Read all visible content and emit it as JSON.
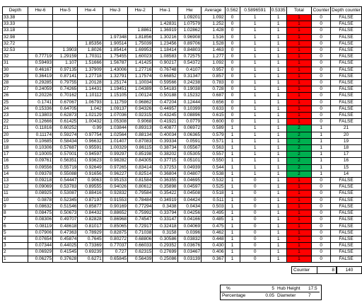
{
  "table": {
    "header": [
      "Depth",
      "Hw-6",
      "Hw-5",
      "Hw-4",
      "Hw-3",
      "Hw-2",
      "Hw-1",
      "Hw",
      "Average",
      "0.562",
      "0.5896591",
      "0.5335",
      "Total",
      "Counter",
      "Depth counter"
    ],
    "total_colors": {
      "1": "#ff0000",
      "2": "#00b050"
    },
    "rows": [
      [
        "33.38",
        null,
        null,
        null,
        null,
        null,
        null,
        "1.09201",
        "1.092",
        "0",
        "1",
        "1",
        "1",
        "0",
        "FALSE"
      ],
      [
        "33.33",
        null,
        null,
        null,
        null,
        null,
        "1.42831",
        "1.07579",
        "1.252",
        "0",
        "1",
        "1",
        "1",
        "0",
        "FALSE"
      ],
      [
        "33.18",
        null,
        null,
        null,
        null,
        "1.8861",
        "1.36919",
        "1.02862",
        "1.428",
        "0",
        "1",
        "1",
        "1",
        "0",
        "FALSE"
      ],
      [
        "32.98",
        null,
        null,
        null,
        "1.97348",
        "1.81856",
        "1.30216",
        "0.96908",
        "1.516",
        "0",
        "1",
        "1",
        "1",
        "0",
        "FALSE"
      ],
      [
        "32.72",
        null,
        null,
        "1.85356",
        "1.90514",
        "1.75039",
        "1.23456",
        "0.89706",
        "1.528",
        "0",
        "1",
        "1",
        "1",
        "0",
        "FALSE"
      ],
      [
        "32.53",
        null,
        "1.3903",
        "1.8026",
        "1.85414",
        "1.69953",
        "1.18414",
        "0.84803",
        "1.463",
        "0",
        "1",
        "1",
        "1",
        "0",
        "FALSE"
      ],
      [
        "32",
        "0.77719",
        "1.29159",
        "1.70311",
        "1.75455",
        "1.60023",
        "1.08583",
        "0.72575",
        "1.277",
        "0",
        "1",
        "1",
        "1",
        "0",
        "FALSE"
      ],
      [
        "31",
        "0.59493",
        "1.107",
        "1.51666",
        "1.56787",
        "1.41425",
        "0.90217",
        "0.54372",
        "1.092",
        "0",
        "1",
        "1",
        "1",
        "0",
        "FALSE"
      ],
      [
        "30",
        "0.46167",
        "0.97135",
        "1.37909",
        "1.43006",
        "1.27716",
        "0.76748",
        "0.4107",
        "0.957",
        "0",
        "1",
        "1",
        "1",
        "0",
        "FALSE"
      ],
      [
        "29",
        "0.36419",
        "0.87141",
        "1.27718",
        "1.32791",
        "1.17574",
        "0.66852",
        "0.31347",
        "0.857",
        "0",
        "1",
        "1",
        "1",
        "0",
        "FALSE"
      ],
      [
        "28",
        "0.29285",
        "0.79755",
        "1.20128",
        "1.25174",
        "1.10034",
        "0.59566",
        "0.24238",
        "0.783",
        "0",
        "1",
        "1",
        "1",
        "0",
        "FALSE"
      ],
      [
        "27",
        "0.24059",
        "0.74265",
        "1.14431",
        "1.19451",
        "1.04389",
        "0.54183",
        "0.19038",
        "0.728",
        "0",
        "1",
        "1",
        "1",
        "0",
        "FALSE"
      ],
      [
        "26",
        "0.20226",
        "0.70162",
        "1.10112",
        "1.15105",
        "1.00124",
        "0.50188",
        "0.15232",
        "0.687",
        "0",
        "1",
        "1",
        "1",
        "0",
        "FALSE"
      ],
      [
        "25",
        "0.1741",
        "0.67067",
        "1.06793",
        "1.11759",
        "0.96862",
        "0.47204",
        "0.12444",
        "0.656",
        "0",
        "1",
        "1",
        "1",
        "0",
        "FALSE"
      ],
      [
        "24",
        "0.15336",
        "0.64705",
        "1.042",
        "1.09137",
        "0.94326",
        "0.44957",
        "0.10399",
        "0.633",
        "0",
        "1",
        "1",
        "1",
        "0",
        "FALSE"
      ],
      [
        "23",
        "0.13803",
        "0.62873",
        "1.02129",
        "1.07036",
        "0.92315",
        "0.43245",
        "0.08896",
        "0.615",
        "0",
        "1",
        "1",
        "1",
        "0",
        "FALSE"
      ],
      [
        "22",
        "0.12666",
        "0.61425",
        "1.00432",
        "1.05308",
        "0.9068",
        "0.41921",
        "0.0779",
        "0.600",
        "0",
        "1",
        "1",
        "1",
        "0",
        "FALSE"
      ],
      [
        "21",
        "0.11816",
        "0.60252",
        "0.99",
        "1.03844",
        "0.89313",
        "0.40877",
        "0.06972",
        "0.589",
        "1",
        "1",
        "1",
        "2",
        "1",
        "21"
      ],
      [
        "20",
        "0.11174",
        "0.59274",
        "0.97754",
        "1.02564",
        "0.88134",
        "0.40034",
        "0.06365",
        "0.579",
        "1",
        "1",
        "1",
        "2",
        "1",
        "20"
      ],
      [
        "19",
        "0.10685",
        "0.58434",
        "0.96632",
        "1.01407",
        "0.87083",
        "0.39334",
        "0.0591",
        "0.571",
        "1",
        "1",
        "1",
        "2",
        "1",
        "19"
      ],
      [
        "18",
        "0.10306",
        "0.57687",
        "0.95591",
        "1.00329",
        "0.86115",
        "0.38734",
        "0.05567",
        "0.563",
        "1",
        "1",
        "1",
        "2",
        "1",
        "18"
      ],
      [
        "17",
        "0.10005",
        "0.57001",
        "0.94597",
        "0.99297",
        "0.85198",
        "0.38202",
        "0.05305",
        "0.557",
        "1",
        "1",
        "1",
        "2",
        "1",
        "17"
      ],
      [
        "16",
        "0.09761",
        "0.56351",
        "0.93623",
        "0.98282",
        "0.84305",
        "0.37715",
        "0.05101",
        "0.550",
        "1",
        "1",
        "1",
        "2",
        "1",
        "16"
      ],
      [
        "15",
        "0.09556",
        "0.55719",
        "0.92649",
        "0.97265",
        "0.83414",
        "0.37253",
        "0.04939",
        "0.544",
        "1",
        "1",
        "1",
        "2",
        "1",
        "15"
      ],
      [
        "14",
        "0.09378",
        "0.55088",
        "0.91656",
        "0.96227",
        "0.82514",
        "0.36804",
        "0.04807",
        "0.538",
        "1",
        "1",
        "1",
        "2",
        "1",
        "14"
      ],
      [
        "13",
        "0.09218",
        "0.54447",
        "0.9063",
        "0.95153",
        "0.81584",
        "0.36355",
        "0.04695",
        "0.532",
        "1",
        "0",
        "1",
        "1",
        "0",
        "FALSE"
      ],
      [
        "12",
        "0.09069",
        "0.53783",
        "0.89555",
        "0.94026",
        "0.80612",
        "0.35898",
        "0.04597",
        "0.525",
        "1",
        "0",
        "1",
        "1",
        "0",
        "FALSE"
      ],
      [
        "11",
        "0.08925",
        "0.53087",
        "0.88416",
        "0.92832",
        "0.79584",
        "0.35422",
        "0.04508",
        "0.518",
        "1",
        "0",
        "1",
        "1",
        "0",
        "FALSE"
      ],
      [
        "10",
        "0.0878",
        "0.52345",
        "0.87197",
        "0.91553",
        "0.78484",
        "0.34919",
        "0.04424",
        "0.511",
        "1",
        "0",
        "1",
        "1",
        "0",
        "FALSE"
      ],
      [
        "9",
        "0.08632",
        "0.51546",
        "0.85877",
        "0.90169",
        "0.77294",
        "0.3438",
        "0.0434",
        "0.503",
        "1",
        "0",
        "1",
        "1",
        "0",
        "FALSE"
      ],
      [
        "8",
        "0.08475",
        "0.50673",
        "0.84432",
        "0.88652",
        "0.75992",
        "0.33794",
        "0.04256",
        "0.495",
        "1",
        "0",
        "1",
        "1",
        "0",
        "FALSE"
      ],
      [
        "7",
        "0.08306",
        "0.49707",
        "0.82828",
        "0.86968",
        "0.74547",
        "0.33147",
        "0.04166",
        "0.485",
        "1",
        "0",
        "1",
        "1",
        "0",
        "FALSE"
      ],
      [
        "6",
        "0.08119",
        "0.48618",
        "0.81017",
        "0.85065",
        "0.72917",
        "0.32418",
        "0.04069",
        "0.475",
        "1",
        "0",
        "1",
        "1",
        "0",
        "FALSE"
      ],
      [
        "5",
        "0.07906",
        "0.47363",
        "0.78929",
        "0.82875",
        "0.71038",
        "0.3158",
        "0.0396",
        "0.462",
        "1",
        "0",
        "1",
        "1",
        "0",
        "FALSE"
      ],
      [
        "4",
        "0.07654",
        "0.45874",
        "0.7645",
        "0.80272",
        "0.68806",
        "0.30586",
        "0.03832",
        "0.448",
        "1",
        "0",
        "1",
        "1",
        "0",
        "FALSE"
      ],
      [
        "3",
        "0.07344",
        "0.44025",
        "0.73369",
        "0.77037",
        "0.66033",
        "0.29352",
        "0.03676",
        "0.430",
        "1",
        "0",
        "1",
        "1",
        "0",
        "FALSE"
      ],
      [
        "2",
        "0.06929",
        "0.41545",
        "0.69239",
        "0.727",
        "0.62315",
        "0.27699",
        "0.03467",
        "0.406",
        "1",
        "0",
        "1",
        "1",
        "0",
        "FALSE"
      ],
      [
        "1",
        "0.06275",
        "0.37628",
        "0.6271",
        "0.65845",
        "0.56439",
        "0.25086",
        "0.03139",
        "0.367",
        "1",
        "0",
        "1",
        "1",
        "0",
        "FALSE"
      ]
    ]
  },
  "summary": {
    "counter_label": "Counter",
    "counter": "8",
    "depth_counter_total": "140"
  },
  "params": {
    "pct_label": "%",
    "pct": "5",
    "hub_label": "Hub Height",
    "hub": "17.5",
    "percentage_label": "Percentage",
    "percentage": "0.05",
    "diameter_label": "Diameter",
    "diameter": "7"
  }
}
